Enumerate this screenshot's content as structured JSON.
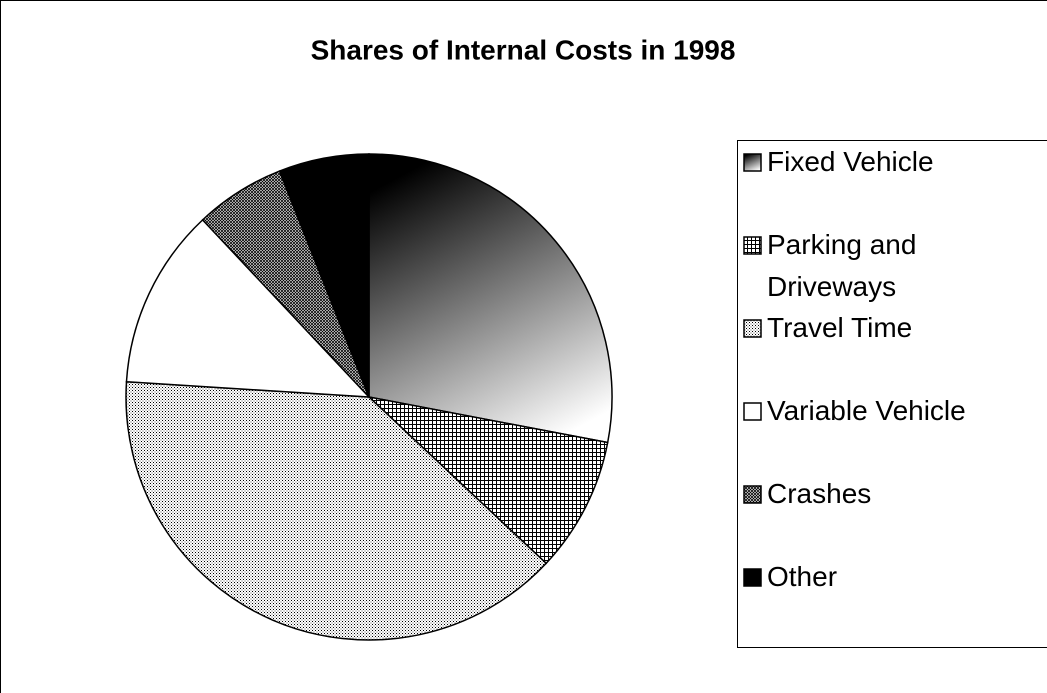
{
  "chart_data": {
    "type": "pie",
    "title": "Shares of Internal Costs in 1998",
    "categories": [
      "Fixed Vehicle",
      "Parking and Driveways",
      "Travel Time",
      "Variable Vehicle",
      "Crashes",
      "Other"
    ],
    "values": [
      28,
      9,
      39,
      12,
      6,
      6
    ],
    "patterns": [
      "gradient",
      "grid",
      "dots",
      "none",
      "hatch",
      "solid"
    ],
    "start_angle": 0,
    "direction": "clockwise",
    "legend": "right"
  }
}
